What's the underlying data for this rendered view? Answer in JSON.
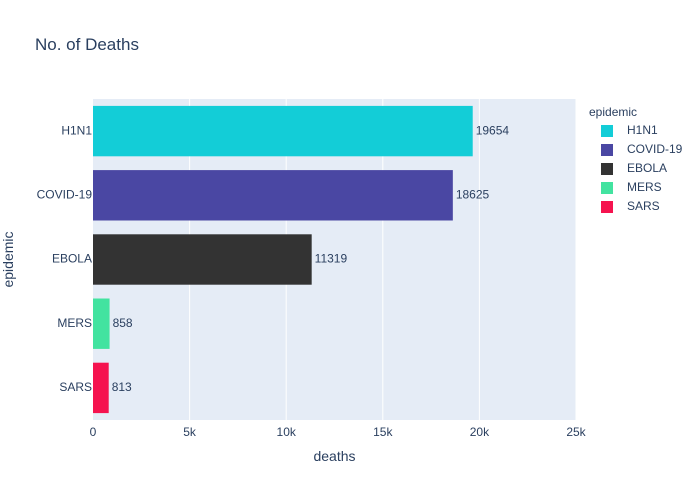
{
  "chart_data": {
    "type": "bar",
    "orientation": "horizontal",
    "title": "No. of Deaths",
    "xlabel": "deaths",
    "ylabel": "epidemic",
    "xlim": [
      0,
      25000
    ],
    "x_ticks": [
      {
        "value": 0,
        "label": "0"
      },
      {
        "value": 5000,
        "label": "5k"
      },
      {
        "value": 10000,
        "label": "10k"
      },
      {
        "value": 15000,
        "label": "15k"
      },
      {
        "value": 20000,
        "label": "20k"
      },
      {
        "value": 25000,
        "label": "25k"
      }
    ],
    "categories": [
      "H1N1",
      "COVID-19",
      "EBOLA",
      "MERS",
      "SARS"
    ],
    "values": [
      19654,
      18625,
      11319,
      858,
      813
    ],
    "value_labels": [
      "19654",
      "18625",
      "11319",
      "858",
      "813"
    ],
    "colors": [
      "#13CDD7",
      "#4A47A3",
      "#333333",
      "#42E3A0",
      "#F5134F"
    ],
    "plot_background": "#E5ECF6",
    "grid": true,
    "legend": {
      "title": "epidemic",
      "placement": "right",
      "items": [
        "H1N1",
        "COVID-19",
        "EBOLA",
        "MERS",
        "SARS"
      ]
    }
  }
}
